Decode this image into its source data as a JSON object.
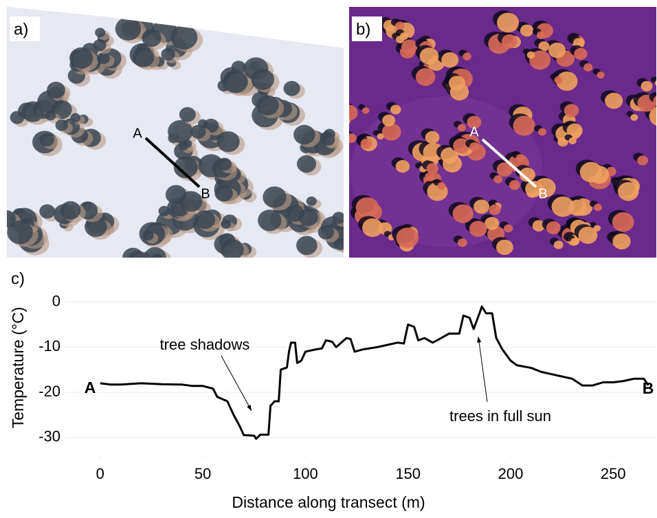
{
  "panels": [
    {
      "label": "a)",
      "start": "A",
      "end": "B"
    },
    {
      "label": "b)",
      "start": "A",
      "end": "B"
    }
  ],
  "chart_data": {
    "type": "line",
    "label": "c)",
    "y_label": "Temperature (°C)",
    "x_label": "Distance along transect (m)",
    "annotations": [
      "tree shadows",
      "trees in full sun"
    ],
    "endpoints": [
      "A",
      "B"
    ],
    "x": [
      0,
      5,
      10,
      20,
      30,
      40,
      45,
      50,
      55,
      57,
      62,
      65,
      68,
      70,
      75,
      76,
      78,
      82,
      83,
      85,
      87,
      88,
      91,
      92,
      93,
      95,
      96,
      98,
      100,
      105,
      108,
      110,
      113,
      115,
      120,
      122,
      124,
      128,
      135,
      140,
      145,
      148,
      150,
      153,
      155,
      158,
      162,
      165,
      170,
      175,
      177,
      180,
      182,
      185,
      186,
      188,
      191,
      193,
      196,
      200,
      203,
      210,
      215,
      220,
      225,
      230,
      235,
      240,
      245,
      250,
      255,
      260,
      265,
      267
    ],
    "values": [
      -18,
      -18.3,
      -18.3,
      -18,
      -18.2,
      -18.3,
      -18.6,
      -18.6,
      -19.2,
      -21,
      -22,
      -25,
      -27.5,
      -29.5,
      -29.6,
      -30.3,
      -29.4,
      -29.4,
      -23,
      -22,
      -22,
      -15,
      -14.5,
      -11,
      -9,
      -9,
      -13.5,
      -13,
      -11,
      -10.5,
      -10.3,
      -8.5,
      -8.8,
      -10,
      -8,
      -8.2,
      -11,
      -10.5,
      -10,
      -9.5,
      -9,
      -9.2,
      -5,
      -5.5,
      -8.5,
      -8,
      -9,
      -8.3,
      -7,
      -7,
      -3,
      -3.5,
      -6,
      -2.3,
      -1,
      -2.5,
      -2.5,
      -8,
      -10.5,
      -13,
      -14,
      -14.6,
      -15.5,
      -16,
      -16.5,
      -17,
      -18.5,
      -18.5,
      -17.8,
      -17.8,
      -17.5,
      -17,
      -17,
      -18.5
    ],
    "color": "#000000",
    "xlim": [
      -17,
      271
    ],
    "ylim": [
      -34,
      1
    ],
    "xticks": [
      0,
      50,
      100,
      150,
      200,
      250
    ],
    "yticks": [
      0,
      -10,
      -20,
      -30
    ],
    "grid": true
  }
}
